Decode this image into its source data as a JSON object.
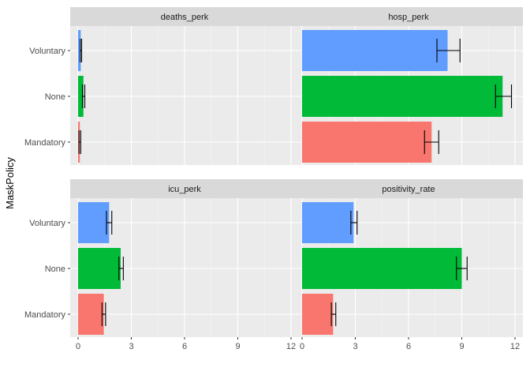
{
  "chart_data": {
    "type": "bar",
    "orientation": "horizontal",
    "ylabel": "MaskPolicy",
    "xlabel": "",
    "categories": [
      "Mandatory",
      "None",
      "Voluntary"
    ],
    "xlim": [
      0,
      12
    ],
    "xticks": [
      0,
      3,
      6,
      9,
      12
    ],
    "grid": true,
    "legend": "none",
    "colors": {
      "Mandatory": "#F8766D",
      "None": "#00BA38",
      "Voluntary": "#619CFF"
    },
    "facets": [
      {
        "title": "deaths_perk",
        "bars": [
          {
            "category": "Mandatory",
            "value": 0.1,
            "err_low": 0.05,
            "err_high": 0.15
          },
          {
            "category": "None",
            "value": 0.3,
            "err_low": 0.25,
            "err_high": 0.38
          },
          {
            "category": "Voluntary",
            "value": 0.15,
            "err_low": 0.12,
            "err_high": 0.2
          }
        ]
      },
      {
        "title": "hosp_perk",
        "bars": [
          {
            "category": "Mandatory",
            "value": 7.3,
            "err_low": 6.9,
            "err_high": 7.7
          },
          {
            "category": "None",
            "value": 11.3,
            "err_low": 10.9,
            "err_high": 11.8
          },
          {
            "category": "Voluntary",
            "value": 8.2,
            "err_low": 7.6,
            "err_high": 8.9
          }
        ]
      },
      {
        "title": "icu_perk",
        "bars": [
          {
            "category": "Mandatory",
            "value": 1.45,
            "err_low": 1.35,
            "err_high": 1.55
          },
          {
            "category": "None",
            "value": 2.4,
            "err_low": 2.3,
            "err_high": 2.55
          },
          {
            "category": "Voluntary",
            "value": 1.75,
            "err_low": 1.6,
            "err_high": 1.9
          }
        ]
      },
      {
        "title": "positivity_rate",
        "bars": [
          {
            "category": "Mandatory",
            "value": 1.75,
            "err_low": 1.65,
            "err_high": 1.9
          },
          {
            "category": "None",
            "value": 9.0,
            "err_low": 8.7,
            "err_high": 9.3
          },
          {
            "category": "Voluntary",
            "value": 2.9,
            "err_low": 2.75,
            "err_high": 3.1
          }
        ]
      }
    ]
  }
}
